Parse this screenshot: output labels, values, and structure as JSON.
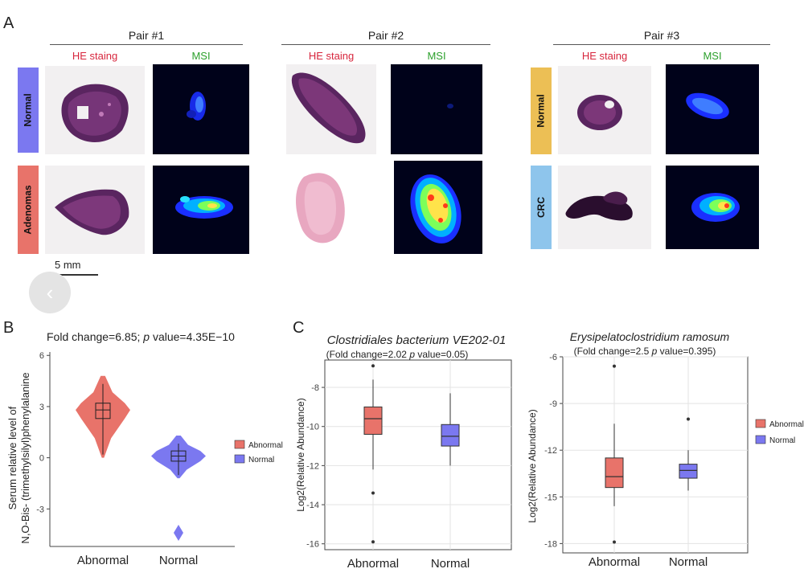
{
  "panel_a": {
    "letter": "A",
    "sub_he": "HE staing",
    "sub_msi": "MSI",
    "scale_bar": "5 mm",
    "pairs": [
      {
        "title": "Pair #1",
        "rows": [
          "Normal",
          "Adenomas"
        ],
        "row_colors": [
          "#7b78f0",
          "#e8736a"
        ]
      },
      {
        "title": "Pair #2",
        "rows": [],
        "row_colors": []
      },
      {
        "title": "Pair #3",
        "rows": [
          "Normal",
          "CRC"
        ],
        "row_colors": [
          "#ecbf55",
          "#8ec5ec"
        ]
      }
    ],
    "colors": {
      "he_tissue": "#6b2d6a",
      "he_pink": "#e8a7c0",
      "msi_bg": "#00021a"
    }
  },
  "chart_data": [
    {
      "type": "violin",
      "panel_letter": "B",
      "annotation": "Fold change=6.85;",
      "p_label": "p",
      "p_text": " value=4.35E−10",
      "ylabel_line1": "Serum relative level of",
      "ylabel_line2": "N,O-Bis- (trimethylsilyl)phenylalanine",
      "categories": [
        "Abnormal",
        "Normal"
      ],
      "y_ticks": [
        "6",
        "3",
        "0",
        "-3"
      ],
      "y_tick_values": [
        6,
        3,
        0,
        -3
      ],
      "ylim": [
        -5.2,
        6.2
      ],
      "series": [
        {
          "name": "Abnormal",
          "color": "#e8736a",
          "min": 0.0,
          "q1": 2.3,
          "median": 2.8,
          "q3": 3.2,
          "max": 4.8,
          "outliers": []
        },
        {
          "name": "Normal",
          "color": "#7b78f0",
          "min": -1.2,
          "q1": -0.2,
          "median": 0.1,
          "q3": 0.4,
          "max": 1.3,
          "outliers": [
            -4.4
          ]
        }
      ],
      "legend": [
        "Abnormal",
        "Normal"
      ],
      "legend_position": "right"
    },
    {
      "type": "box",
      "panel_letter": "C",
      "title": "Clostridiales bacterium VE202-01",
      "subtitle_prefix": "(Fold change=2.02",
      "p_label": "p",
      "subtitle_suffix": " value=0.05)",
      "ylabel": "Log2(Relative Abundance)",
      "categories": [
        "Abnormal",
        "Normal"
      ],
      "y_ticks": [
        "-8",
        "-10",
        "-12",
        "-14",
        "-16"
      ],
      "y_tick_values": [
        -8,
        -10,
        -12,
        -14,
        -16
      ],
      "ylim": [
        -16.3,
        -6.6
      ],
      "grid": true,
      "series": [
        {
          "name": "Abnormal",
          "color": "#e8736a",
          "min": -12.2,
          "q1": -10.4,
          "median": -9.6,
          "q3": -9.0,
          "max": -7.6,
          "outliers": [
            -6.9,
            -13.4,
            -15.9
          ]
        },
        {
          "name": "Normal",
          "color": "#7b78f0",
          "min": -12.0,
          "q1": -11.0,
          "median": -10.5,
          "q3": -9.9,
          "max": -8.3,
          "outliers": []
        }
      ]
    },
    {
      "type": "box",
      "title": "Erysipelatoclostridium ramosum",
      "subtitle_prefix": "(Fold change=2.5",
      "p_label": "p",
      "subtitle_suffix": " value=0.395)",
      "ylabel": "Log2(Relative Abundance)",
      "categories": [
        "Abnormal",
        "Normal"
      ],
      "y_ticks": [
        "-6",
        "-9",
        "-12",
        "-15",
        "-18"
      ],
      "y_tick_values": [
        -6,
        -9,
        -12,
        -15,
        -18
      ],
      "ylim": [
        -18.6,
        -6.0
      ],
      "grid": true,
      "series": [
        {
          "name": "Abnormal",
          "color": "#e8736a",
          "min": -15.6,
          "q1": -14.4,
          "median": -13.7,
          "q3": -12.5,
          "max": -10.3,
          "outliers": [
            -6.6,
            -17.9
          ]
        },
        {
          "name": "Normal",
          "color": "#7b78f0",
          "min": -14.6,
          "q1": -13.8,
          "median": -13.3,
          "q3": -12.9,
          "max": -12.0,
          "outliers": [
            -10.0
          ]
        }
      ],
      "legend": [
        "Abnormal",
        "Normal"
      ],
      "legend_position": "right"
    }
  ]
}
